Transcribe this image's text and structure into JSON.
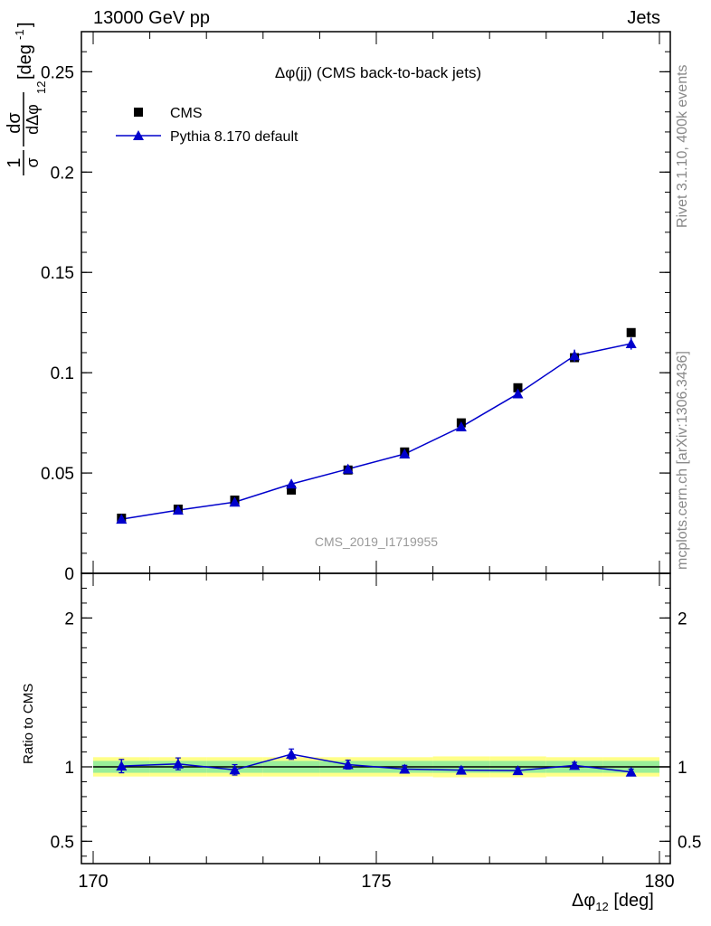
{
  "header": {
    "left": "13000 GeV pp",
    "right": "Jets"
  },
  "side_labels": {
    "rivet": "Rivet 3.1.10,  400k events",
    "site": "mcplots.cern.ch [arXiv:1306.3436]"
  },
  "colors": {
    "data": "#000000",
    "mc": "#0000cc",
    "band_inner": "#99ee99",
    "band_outer": "#ffff88",
    "watermark": "#999999"
  },
  "chart_data": {
    "type": "scatter",
    "title": "Δφ(jj) (CMS back-to-back jets)",
    "watermark": "CMS_2019_I1719955",
    "xlabel": "Δφ",
    "xlabel_sub": "12",
    "xlabel_unit": "[deg]",
    "ylabel_main": "1/σ dσ/dΔφ_12 [deg^-1]",
    "ylabel_ratio": "Ratio to CMS",
    "xlim": [
      170,
      180
    ],
    "ylim_main": [
      0,
      0.27
    ],
    "ylim_ratio": [
      0.35,
      2.3
    ],
    "x_ticks": [
      170,
      175,
      180
    ],
    "x_tick_labels": [
      "170",
      "175",
      "180"
    ],
    "y_ticks_main": [
      0,
      0.05,
      0.1,
      0.15,
      0.2,
      0.25
    ],
    "y_tick_labels_main": [
      "0",
      "0.05",
      "0.1",
      "0.15",
      "0.2",
      "0.25"
    ],
    "y_ticks_ratio": [
      0.5,
      1,
      2
    ],
    "y_tick_labels_ratio": [
      "0.5",
      "1",
      "2"
    ],
    "legend": {
      "position": "top-left",
      "entries": [
        "CMS",
        "Pythia 8.170 default"
      ]
    },
    "series": [
      {
        "name": "CMS",
        "marker": "square",
        "x": [
          170.5,
          171.5,
          172.5,
          173.5,
          174.5,
          175.5,
          176.5,
          177.5,
          178.5,
          179.5
        ],
        "values": [
          0.0275,
          0.032,
          0.0365,
          0.0415,
          0.0515,
          0.0605,
          0.075,
          0.0925,
          0.1075,
          0.12
        ]
      },
      {
        "name": "Pythia 8.170 default",
        "marker": "triangle",
        "x": [
          170.5,
          171.5,
          172.5,
          173.5,
          174.5,
          175.5,
          176.5,
          177.5,
          178.5,
          179.5
        ],
        "values": [
          0.027,
          0.0315,
          0.0355,
          0.0445,
          0.052,
          0.0595,
          0.073,
          0.0895,
          0.1085,
          0.1145
        ],
        "errors": [
          0.0012,
          0.0012,
          0.0012,
          0.002,
          0.0018,
          0.0015,
          0.0015,
          0.002,
          0.003,
          0.003
        ]
      }
    ],
    "ratio": {
      "x": [
        170.5,
        171.5,
        172.5,
        173.5,
        174.5,
        175.5,
        176.5,
        177.5,
        178.5,
        179.5
      ],
      "values": [
        1.005,
        1.02,
        0.98,
        1.085,
        1.015,
        0.985,
        0.978,
        0.975,
        1.01,
        0.965
      ],
      "errors": [
        0.045,
        0.04,
        0.035,
        0.035,
        0.03,
        0.025,
        0.02,
        0.015,
        0.02,
        0.02
      ],
      "band_inner": [
        0.04,
        0.04,
        0.04,
        0.04,
        0.04,
        0.04,
        0.04,
        0.04,
        0.04,
        0.04
      ],
      "band_outer": [
        0.065,
        0.065,
        0.065,
        0.065,
        0.065,
        0.065,
        0.07,
        0.07,
        0.065,
        0.065
      ]
    }
  }
}
